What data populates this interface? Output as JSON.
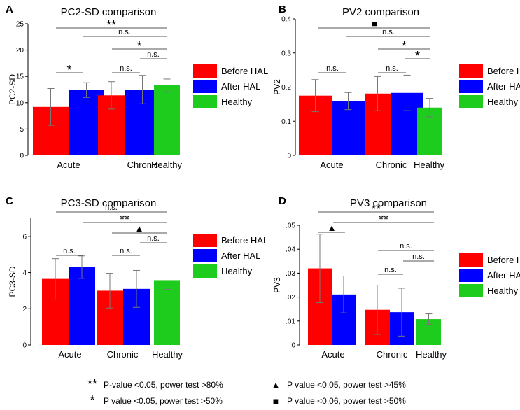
{
  "colors": {
    "before_hal": "#ff0000",
    "after_hal": "#0000ff",
    "healthy": "#1ecc1e",
    "axis": "#000000",
    "error_bar": "#777777",
    "bracket": "#555555"
  },
  "legend_labels": [
    "Before HAL",
    "After HAL",
    "Healthy"
  ],
  "chart_data": [
    {
      "panel": "A",
      "type": "bar",
      "title": "PC2-SD comparison",
      "ylabel": "PC2-SD",
      "xlabel": "",
      "ylim": [
        0,
        25
      ],
      "yticks": [
        "0",
        "5",
        "10",
        "15",
        "20",
        "25"
      ],
      "categories": [
        "Acute",
        "Chronic",
        "Healthy"
      ],
      "series": [
        {
          "name": "Before HAL",
          "values": [
            9.2,
            11.4,
            null
          ],
          "errors": [
            3.5,
            2.6,
            null
          ]
        },
        {
          "name": "After HAL",
          "values": [
            12.4,
            12.5,
            null
          ],
          "errors": [
            1.4,
            2.7,
            null
          ]
        },
        {
          "name": "Healthy",
          "values": [
            null,
            null,
            13.3
          ],
          "errors": [
            null,
            null,
            1.2
          ]
        }
      ],
      "significance": [
        {
          "from": "Acute-Before",
          "to": "Healthy",
          "label": "**"
        },
        {
          "from": "Acute-After",
          "to": "Healthy",
          "label": "n.s."
        },
        {
          "from": "Chronic-Before",
          "to": "Healthy",
          "label": "*"
        },
        {
          "from": "Chronic-After",
          "to": "Healthy",
          "label": "n.s."
        },
        {
          "from": "Acute-Before",
          "to": "Acute-After",
          "label": "*"
        },
        {
          "from": "Chronic-Before",
          "to": "Chronic-After",
          "label": "n.s."
        }
      ]
    },
    {
      "panel": "B",
      "type": "bar",
      "title": "PV2 comparison",
      "ylabel": "PV2",
      "xlabel": "",
      "ylim": [
        0,
        0.4
      ],
      "yticks": [
        "0",
        "0.1",
        "0.2",
        "0.3",
        "0.4"
      ],
      "categories": [
        "Acute",
        "Chronic",
        "Healthy"
      ],
      "series": [
        {
          "name": "Before HAL",
          "values": [
            0.175,
            0.181,
            null
          ],
          "errors": [
            0.047,
            0.05,
            null
          ]
        },
        {
          "name": "After HAL",
          "values": [
            0.159,
            0.183,
            null
          ],
          "errors": [
            0.025,
            0.052,
            null
          ]
        },
        {
          "name": "Healthy",
          "values": [
            null,
            null,
            0.14
          ],
          "errors": [
            null,
            null,
            0.027
          ]
        }
      ],
      "significance": [
        {
          "from": "Acute-Before",
          "to": "Healthy",
          "label": "■"
        },
        {
          "from": "Acute-After",
          "to": "Healthy",
          "label": "n.s."
        },
        {
          "from": "Chronic-Before",
          "to": "Healthy",
          "label": "*"
        },
        {
          "from": "Chronic-After",
          "to": "Healthy",
          "label": "*"
        },
        {
          "from": "Acute-Before",
          "to": "Acute-After",
          "label": "n.s."
        },
        {
          "from": "Chronic-Before",
          "to": "Chronic-After",
          "label": "n.s."
        }
      ]
    },
    {
      "panel": "C",
      "type": "bar",
      "title": "PC3-SD comparison",
      "ylabel": "PC3-SD",
      "xlabel": "",
      "ylim": [
        0,
        7
      ],
      "yticks": [
        "0",
        "2",
        "4",
        "6"
      ],
      "categories": [
        "Acute",
        "Chronic",
        "Healthy"
      ],
      "series": [
        {
          "name": "Before HAL",
          "values": [
            3.65,
            3.0,
            null
          ],
          "errors": [
            1.12,
            0.96,
            null
          ]
        },
        {
          "name": "After HAL",
          "values": [
            4.3,
            3.1,
            null
          ],
          "errors": [
            0.62,
            1.02,
            null
          ]
        },
        {
          "name": "Healthy",
          "values": [
            null,
            null,
            3.58
          ],
          "errors": [
            null,
            null,
            0.5
          ]
        }
      ],
      "significance": [
        {
          "from": "Acute-Before",
          "to": "Healthy",
          "label": "n.s."
        },
        {
          "from": "Acute-After",
          "to": "Healthy",
          "label": "**"
        },
        {
          "from": "Chronic-Before",
          "to": "Healthy",
          "label": "▲"
        },
        {
          "from": "Chronic-After",
          "to": "Healthy",
          "label": "n.s."
        },
        {
          "from": "Acute-Before",
          "to": "Acute-After",
          "label": "n.s."
        },
        {
          "from": "Chronic-Before",
          "to": "Chronic-After",
          "label": "n.s."
        }
      ]
    },
    {
      "panel": "D",
      "type": "bar",
      "title": "PV3 comparison",
      "ylabel": "PV3",
      "xlabel": "",
      "ylim": [
        0,
        0.05
      ],
      "yticks": [
        "0",
        ".01",
        ".02",
        ".03",
        ".04",
        ".05"
      ],
      "categories": [
        "Acute",
        "Chronic",
        "Healthy"
      ],
      "series": [
        {
          "name": "Before HAL",
          "values": [
            0.032,
            0.0147,
            null
          ],
          "errors": [
            0.0143,
            0.0103,
            null
          ]
        },
        {
          "name": "After HAL",
          "values": [
            0.0211,
            0.0137,
            null
          ],
          "errors": [
            0.0077,
            0.01,
            null
          ]
        },
        {
          "name": "Healthy",
          "values": [
            null,
            null,
            0.0108
          ],
          "errors": [
            null,
            null,
            0.0022
          ]
        }
      ],
      "significance": [
        {
          "from": "Acute-Before",
          "to": "Healthy",
          "label": "**"
        },
        {
          "from": "Acute-After",
          "to": "Healthy",
          "label": "**"
        },
        {
          "from": "Acute-Before",
          "to": "Acute-After",
          "label": "▲"
        },
        {
          "from": "Chronic-Before",
          "to": "Healthy",
          "label": "n.s."
        },
        {
          "from": "Chronic-After",
          "to": "Healthy",
          "label": "n.s."
        },
        {
          "from": "Chronic-Before",
          "to": "Chronic-After",
          "label": "n.s."
        }
      ]
    }
  ],
  "footnotes": [
    {
      "symbol": "**",
      "text": "P-value <0.05, power test >80%"
    },
    {
      "symbol": "*",
      "text": "P value <0.05, power test >50%"
    },
    {
      "symbol": "▲",
      "text": "P value <0.05, power test >45%"
    },
    {
      "symbol": "■",
      "text": "P value <0.06, power test >50%"
    }
  ]
}
